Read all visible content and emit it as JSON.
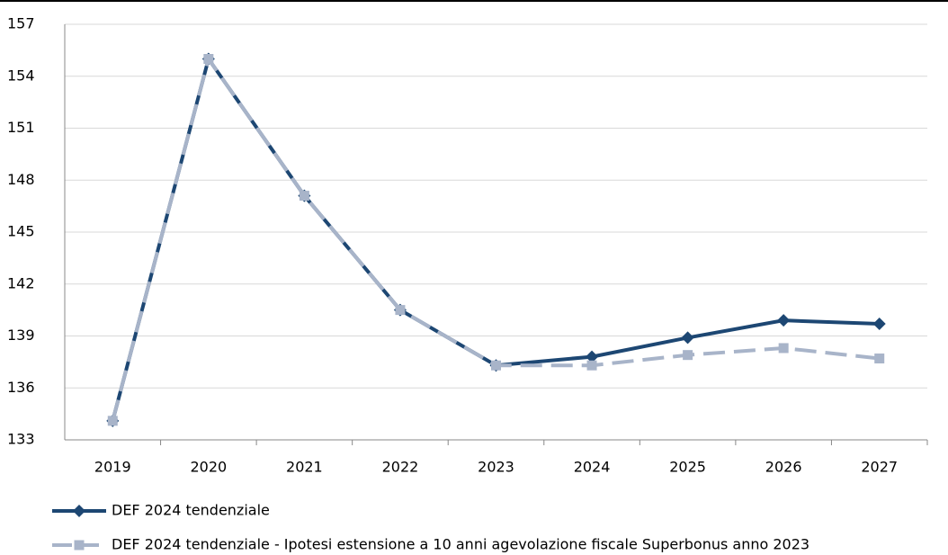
{
  "chart_data": {
    "type": "line",
    "categories": [
      "2019",
      "2020",
      "2021",
      "2022",
      "2023",
      "2024",
      "2025",
      "2026",
      "2027"
    ],
    "series": [
      {
        "name": "DEF 2024 tendenziale",
        "color": "#1d4773",
        "values": [
          134.1,
          155.0,
          147.1,
          140.5,
          137.3,
          137.8,
          138.9,
          139.9,
          139.7
        ]
      },
      {
        "name": "DEF 2024 tendenziale - Ipotesi estensione a 10 anni agevolazione fiscale Superbonus anno 2023",
        "color": "#a8b4c9",
        "values": [
          134.1,
          155.0,
          147.1,
          140.5,
          137.3,
          137.3,
          137.9,
          138.3,
          137.7
        ]
      }
    ],
    "ylim": [
      133,
      157
    ],
    "yticks": [
      133,
      136,
      139,
      142,
      145,
      148,
      151,
      154,
      157
    ],
    "grid": true
  }
}
